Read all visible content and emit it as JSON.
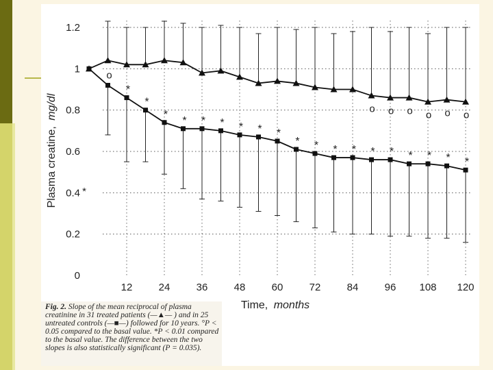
{
  "chart_data": {
    "type": "line",
    "xlabel": "Time",
    "xlabel_unit": "months",
    "ylabel": "Plasma creatine,",
    "ylabel_unit": "mg/dl",
    "xlim": [
      0,
      120
    ],
    "ylim": [
      0,
      1.2
    ],
    "x_ticks": [
      12,
      24,
      36,
      48,
      60,
      72,
      84,
      96,
      108,
      120
    ],
    "y_ticks": [
      0,
      0.2,
      0.4,
      0.6,
      0.8,
      1,
      1.2
    ],
    "y_tick_labels": [
      "0",
      "0.2",
      "0.4",
      "0.6",
      "0.8",
      "1",
      "1.2"
    ],
    "grid": true,
    "x": [
      0,
      6,
      12,
      18,
      24,
      30,
      36,
      42,
      48,
      54,
      60,
      66,
      72,
      78,
      84,
      90,
      96,
      102,
      108,
      114,
      120
    ],
    "series": [
      {
        "marker": "triangle",
        "values": [
          1.0,
          1.04,
          1.02,
          1.02,
          1.04,
          1.03,
          0.98,
          0.99,
          0.96,
          0.93,
          0.94,
          0.93,
          0.91,
          0.9,
          0.9,
          0.87,
          0.86,
          0.86,
          0.84,
          0.85,
          0.84
        ],
        "err_upper": [
          1.0,
          1.23,
          1.2,
          1.2,
          1.23,
          1.22,
          1.2,
          1.21,
          1.2,
          1.17,
          1.2,
          1.19,
          1.2,
          1.17,
          1.18,
          1.2,
          1.18,
          1.2,
          1.17,
          1.2,
          1.2
        ],
        "markers": [
          "",
          "",
          "",
          "",
          "",
          "",
          "",
          "",
          "",
          "",
          "",
          "",
          "",
          "",
          "",
          "o",
          "o",
          "o",
          "o",
          "o",
          "o"
        ]
      },
      {
        "marker": "square",
        "values": [
          1.0,
          0.92,
          0.86,
          0.8,
          0.74,
          0.71,
          0.71,
          0.7,
          0.68,
          0.67,
          0.65,
          0.61,
          0.59,
          0.57,
          0.57,
          0.56,
          0.56,
          0.54,
          0.54,
          0.53,
          0.51
        ],
        "err_lower": [
          1.0,
          0.68,
          0.55,
          0.55,
          0.49,
          0.42,
          0.37,
          0.36,
          0.33,
          0.31,
          0.29,
          0.26,
          0.23,
          0.21,
          0.2,
          0.2,
          0.19,
          0.19,
          0.18,
          0.18,
          0.16
        ],
        "markers": [
          "",
          "o",
          "*",
          "*",
          "*",
          "*",
          "*",
          "*",
          "*",
          "*",
          "*",
          "*",
          "*",
          "*",
          "*",
          "*",
          "*",
          "*",
          "*",
          "*",
          "*"
        ]
      }
    ],
    "stray_annotation": "*"
  },
  "caption": {
    "lead": "Fig. 2.",
    "text": " Slope of the mean reciprocal of plasma creatinine in 31 treated patients (—▲— ) and in 25 untreated controls (—■—) followed for 10 years. °P < 0.05 compared to the basal value. *P < 0.01 compared to the basal value. The difference between the two slopes is also statistically significant (P = 0.035)."
  }
}
